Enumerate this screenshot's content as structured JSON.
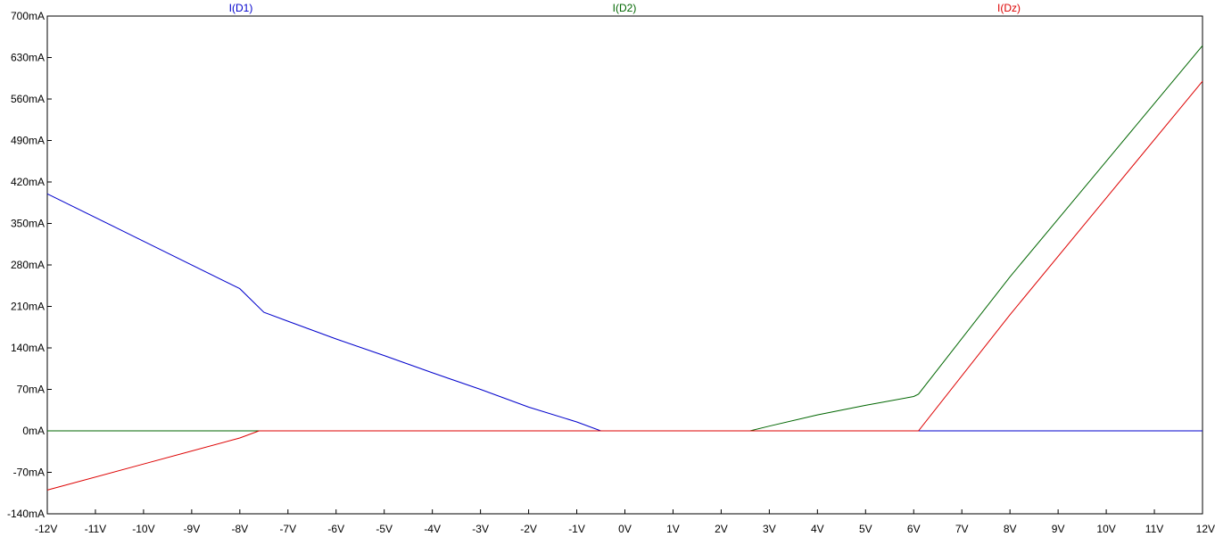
{
  "chart_data": {
    "type": "line",
    "title": "",
    "xlabel": "",
    "ylabel": "",
    "xlim": [
      -12,
      12
    ],
    "ylim": [
      -140,
      700
    ],
    "x_ticks": [
      -12,
      -11,
      -10,
      -9,
      -8,
      -7,
      -6,
      -5,
      -4,
      -3,
      -2,
      -1,
      0,
      1,
      2,
      3,
      4,
      5,
      6,
      7,
      8,
      9,
      10,
      11,
      12
    ],
    "x_tick_labels": [
      "-12V",
      "-11V",
      "-10V",
      "-9V",
      "-8V",
      "-7V",
      "-6V",
      "-5V",
      "-4V",
      "-3V",
      "-2V",
      "-1V",
      "0V",
      "1V",
      "2V",
      "3V",
      "4V",
      "5V",
      "6V",
      "7V",
      "8V",
      "9V",
      "10V",
      "11V",
      "12V"
    ],
    "y_ticks": [
      700,
      630,
      560,
      490,
      420,
      350,
      280,
      210,
      140,
      70,
      0,
      -70,
      -140
    ],
    "y_tick_labels": [
      "700mA",
      "630mA",
      "560mA",
      "490mA",
      "420mA",
      "350mA",
      "280mA",
      "210mA",
      "140mA",
      "70mA",
      "0mA",
      "-70mA",
      "-140mA"
    ],
    "grid": false,
    "legend_position": "top",
    "series": [
      {
        "name": "I(D1)",
        "color": "#0000cc",
        "x": [
          -12,
          -10,
          -8,
          -7.5,
          -7,
          -6,
          -5,
          -4,
          -3,
          -2,
          -1,
          -0.5,
          12
        ],
        "y": [
          400,
          320,
          240,
          200,
          185,
          155,
          127,
          98,
          70,
          40,
          15,
          0,
          0
        ]
      },
      {
        "name": "I(D2)",
        "color": "#006600",
        "x": [
          -12,
          2.6,
          3,
          4,
          5,
          6,
          6.1,
          8,
          10,
          12
        ],
        "y": [
          0,
          0,
          8,
          27,
          43,
          58,
          62,
          260,
          455,
          650
        ]
      },
      {
        "name": "I(Dz)",
        "color": "#dd0000",
        "x": [
          -12,
          -10,
          -8,
          -7.6,
          6.1,
          8,
          10,
          12
        ],
        "y": [
          -100,
          -56,
          -12,
          0,
          0,
          196,
          393,
          590
        ]
      }
    ]
  }
}
